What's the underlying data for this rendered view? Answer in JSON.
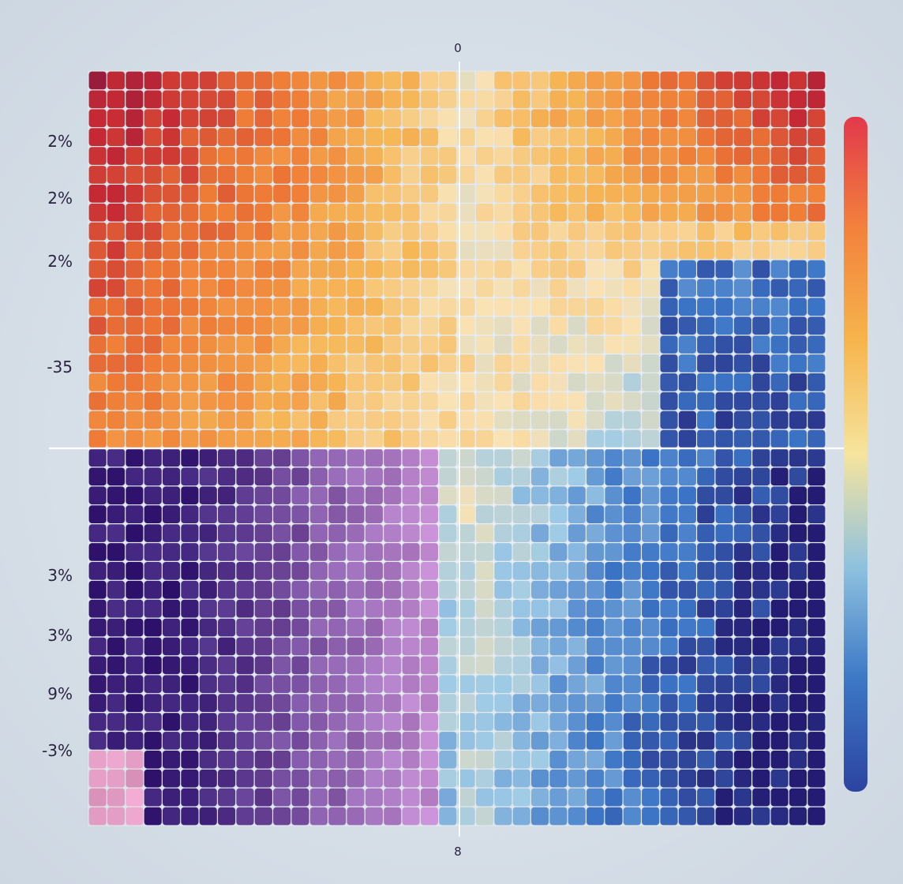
{
  "chart_data": {
    "type": "heatmap",
    "title": "",
    "xlabel": "",
    "ylabel": "",
    "rows": 40,
    "cols": 40,
    "y_tick_labels": [
      "2%",
      "2%",
      "2%",
      "-35",
      "3%",
      "3%",
      "9%",
      "-3%"
    ],
    "x_tick_labels": [
      "0",
      "8"
    ],
    "grid": true,
    "center_lines": true,
    "colorbar": {
      "position": "right",
      "colors": [
        "#e2394b",
        "#f3823c",
        "#f6b54c",
        "#f6e49e",
        "#8fc2df",
        "#3d78c6",
        "#2c44a0"
      ]
    },
    "color_scale": {
      "min": 0,
      "max": 1,
      "stops": [
        {
          "v": 0.0,
          "color": "#7a1241"
        },
        {
          "v": 0.18,
          "color": "#c62a34"
        },
        {
          "v": 0.35,
          "color": "#ef7c36"
        },
        {
          "v": 0.5,
          "color": "#f6b656"
        },
        {
          "v": 0.62,
          "color": "#f9e2b4"
        },
        {
          "v": 0.75,
          "color": "#9fcbe6"
        },
        {
          "v": 0.88,
          "color": "#3b74c6"
        },
        {
          "v": 1.0,
          "color": "#241c73"
        }
      ]
    },
    "quadrant_trend": {
      "top_left": "dark red to orange",
      "top_center": "pale yellow",
      "top_right": "red to dark purple",
      "bottom_left": "purple",
      "bottom_center": "pale yellow to light blue",
      "bottom_right": "blue to dark navy"
    }
  }
}
